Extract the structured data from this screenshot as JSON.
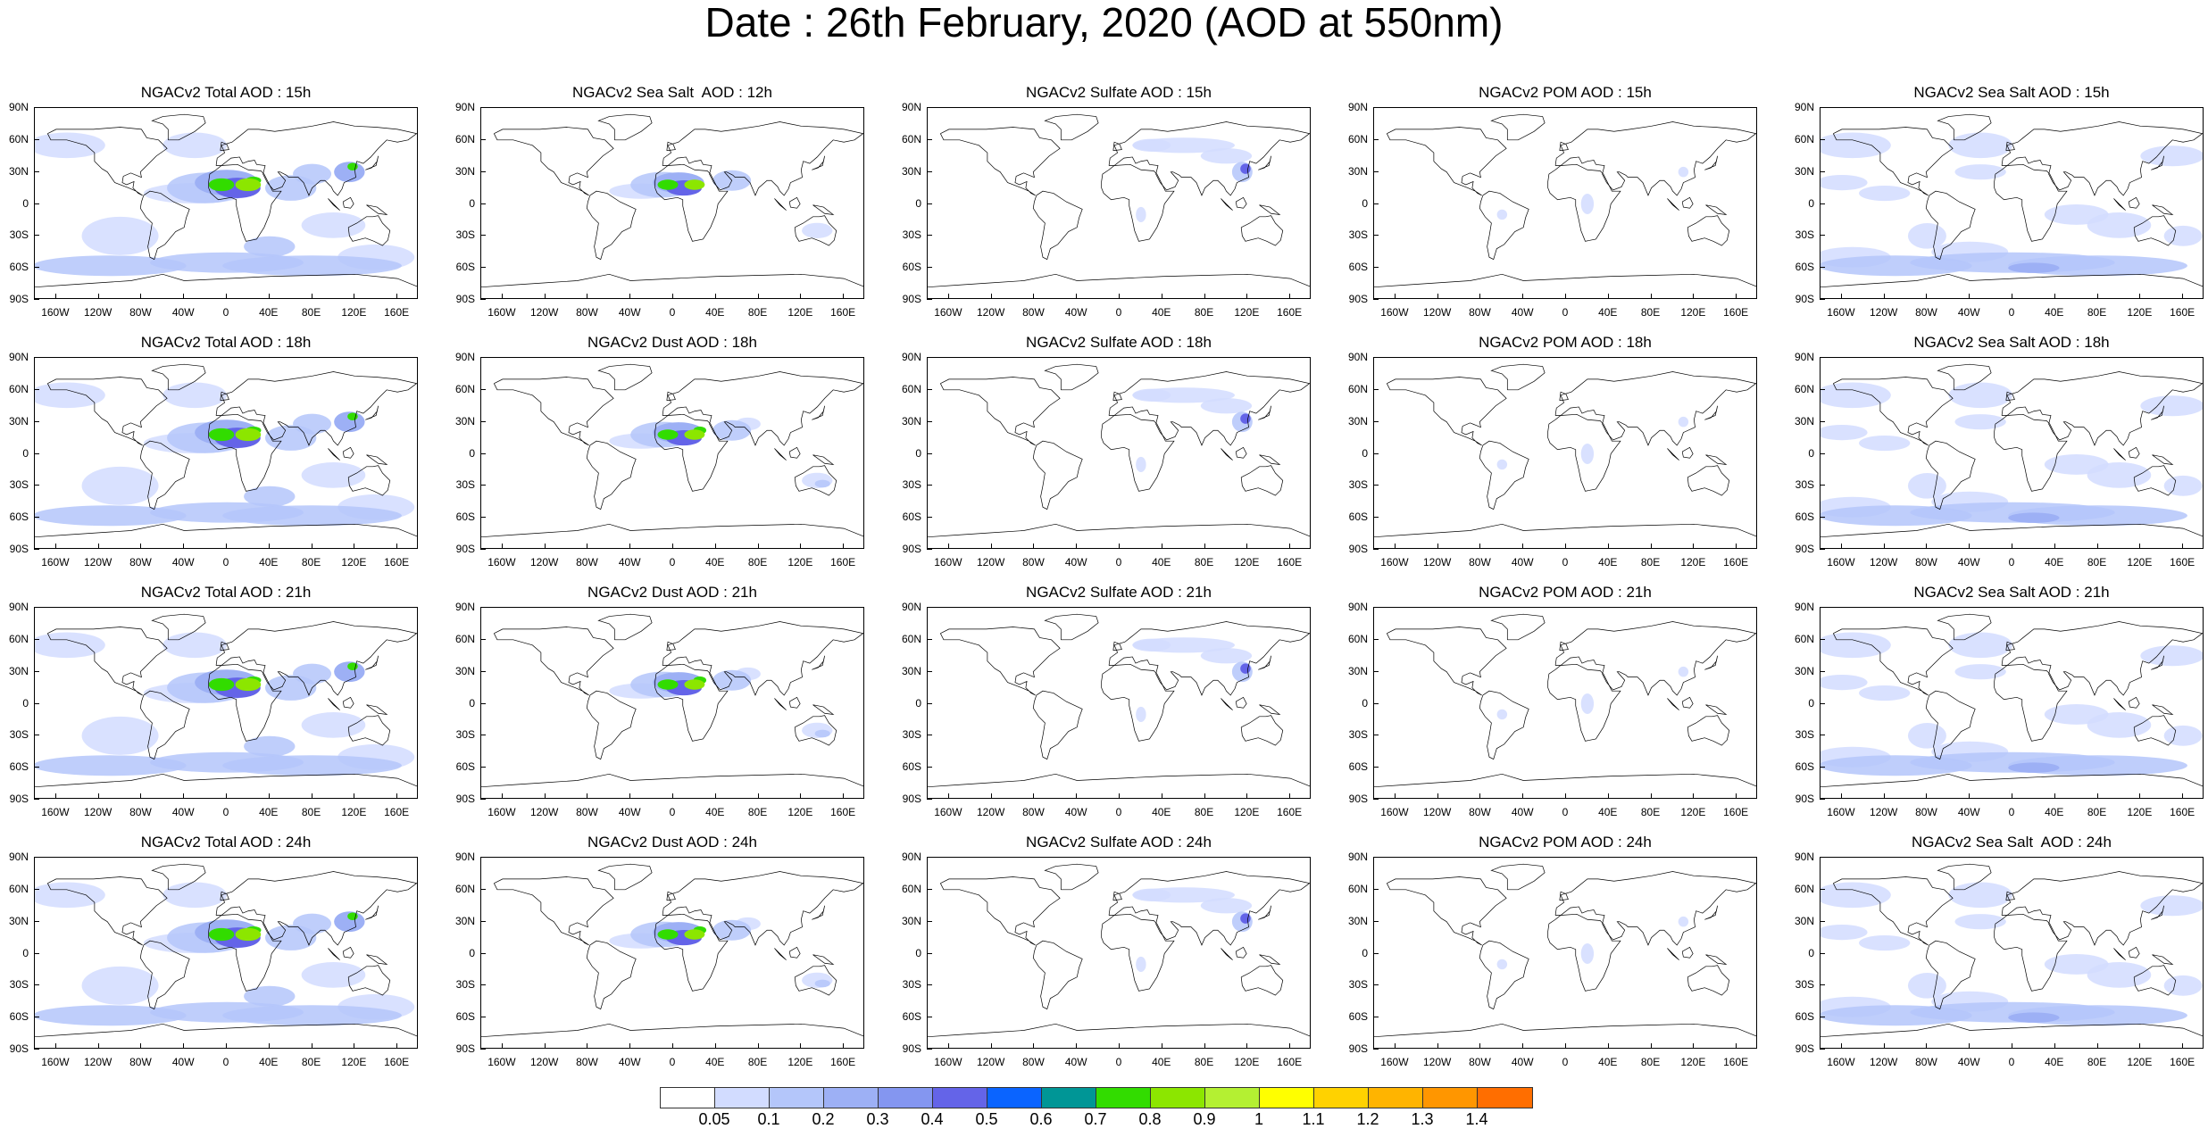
{
  "title": "Date : 26th February, 2020 (AOD at 550nm)",
  "panels": [
    [
      "NGACv2 Total AOD : 15h",
      "NGACv2 Sea Salt  AOD : 12h",
      "NGACv2 Sulfate AOD : 15h",
      "NGACv2 POM AOD : 15h",
      "NGACv2 Sea Salt AOD : 15h"
    ],
    [
      "NGACv2 Total AOD : 18h",
      "NGACv2 Dust AOD : 18h",
      "NGACv2 Sulfate AOD : 18h",
      "NGACv2 POM AOD : 18h",
      "NGACv2 Sea Salt AOD : 18h"
    ],
    [
      "NGACv2 Total AOD : 21h",
      "NGACv2 Dust AOD : 21h",
      "NGACv2 Sulfate AOD : 21h",
      "NGACv2 POM AOD : 21h",
      "NGACv2 Sea Salt AOD : 21h"
    ],
    [
      "NGACv2 Total AOD : 24h",
      "NGACv2 Dust AOD : 24h",
      "NGACv2 Sulfate AOD : 24h",
      "NGACv2 POM AOD : 24h",
      "NGACv2 Sea Salt  AOD : 24h"
    ]
  ],
  "lat_labels": [
    "90N",
    "60N",
    "30N",
    "0",
    "30S",
    "60S",
    "90S"
  ],
  "lon_labels": [
    "160W",
    "120W",
    "80W",
    "40W",
    "0",
    "40E",
    "80E",
    "120E",
    "160E"
  ],
  "colorbar": {
    "labels": [
      "0.05",
      "0.1",
      "0.2",
      "0.3",
      "0.4",
      "0.5",
      "0.6",
      "0.7",
      "0.8",
      "0.9",
      "1",
      "1.1",
      "1.2",
      "1.3",
      "1.4"
    ],
    "colors": [
      "#ffffff",
      "#d2dcff",
      "#b4c6fa",
      "#9db0f5",
      "#8496f0",
      "#6464e8",
      "#0a64ff",
      "#009696",
      "#32dc00",
      "#8ce600",
      "#b4f032",
      "#ffff00",
      "#ffd200",
      "#ffb400",
      "#ff9600",
      "#ff6e00",
      "#ff2800"
    ]
  },
  "aod_fields": {
    "total": {
      "background": 0.1,
      "saharan_dust": 0.8,
      "southern_ocean": 0.2,
      "east_asia": 0.3
    },
    "seasalt": {
      "background": 0.1,
      "southern_ocean": 0.2
    },
    "dust": {
      "saharan_dust": 0.8,
      "arabia": 0.3
    },
    "sulfate": {
      "east_asia": 0.4,
      "eurasia": 0.1
    },
    "pom": {
      "background": 0.05
    }
  }
}
